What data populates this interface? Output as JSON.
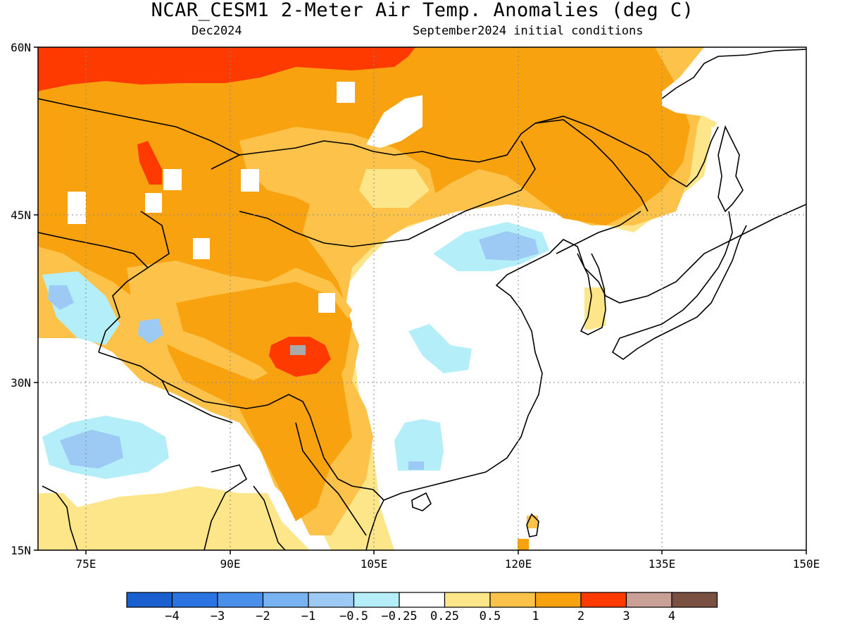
{
  "header": {
    "title": "NCAR_CESM1 2-Meter Air Temp. Anomalies (deg C)",
    "subtitle_left": "Dec2024",
    "subtitle_right": "September2024 initial conditions"
  },
  "map": {
    "lat_range": [
      15,
      60
    ],
    "lon_range": [
      70,
      150
    ],
    "lat_ticks": [
      "60N",
      "45N",
      "30N",
      "15N"
    ],
    "lon_ticks": [
      "75E",
      "90E",
      "105E",
      "120E",
      "135E",
      "150E"
    ],
    "gridlines": "dotted"
  },
  "colorbar": {
    "labels": [
      "-4",
      "-3",
      "-2",
      "-1",
      "-0.5",
      "-0.25",
      "0.25",
      "0.5",
      "1",
      "2",
      "3",
      "4"
    ],
    "colors": [
      "#1a5fd0",
      "#2b73e0",
      "#4a90ea",
      "#78b2f0",
      "#9ccaf4",
      "#b4eef8",
      "#ffffff",
      "#fde58a",
      "#fcc24a",
      "#f9a20f",
      "#ff3a00",
      "#c8a095",
      "#7a5042"
    ]
  }
}
